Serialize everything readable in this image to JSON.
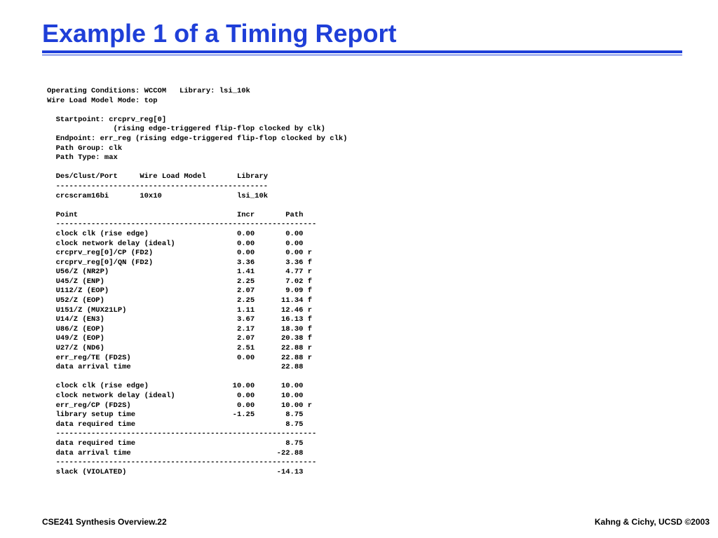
{
  "slide": {
    "title": "Example 1 of a Timing Report",
    "accent_color": "#1f3fd8"
  },
  "report": {
    "lines": [
      "Operating Conditions: WCCOM   Library: lsi_10k",
      "Wire Load Model Mode: top",
      "",
      "  Startpoint: crcprv_reg[0]",
      "               (rising edge-triggered flip-flop clocked by clk)",
      "  Endpoint: err_reg (rising edge-triggered flip-flop clocked by clk)",
      "  Path Group: clk",
      "  Path Type: max",
      "",
      "  Des/Clust/Port     Wire Load Model       Library",
      "  ------------------------------------------------",
      "  crcscram16bi       10x10                 lsi_10k",
      "",
      "  Point                                    Incr       Path",
      "  -----------------------------------------------------------",
      "  clock clk (rise edge)                    0.00       0.00",
      "  clock network delay (ideal)              0.00       0.00",
      "  crcprv_reg[0]/CP (FD2)                   0.00       0.00 r",
      "  crcprv_reg[0]/QN (FD2)                   3.36       3.36 f",
      "  U56/Z (NR2P)                             1.41       4.77 r",
      "  U45/Z (ENP)                              2.25       7.02 f",
      "  U112/Z (EOP)                             2.07       9.09 f",
      "  U52/Z (EOP)                              2.25      11.34 f",
      "  U151/Z (MUX21LP)                         1.11      12.46 r",
      "  U14/Z (EN3)                              3.67      16.13 f",
      "  U86/Z (EOP)                              2.17      18.30 f",
      "  U49/Z (EOP)                              2.07      20.38 f",
      "  U27/Z (ND6)                              2.51      22.88 r",
      "  err_reg/TE (FD2S)                        0.00      22.88 r",
      "  data arrival time                                  22.88",
      "",
      "  clock clk (rise edge)                   10.00      10.00",
      "  clock network delay (ideal)              0.00      10.00",
      "  err_reg/CP (FD2S)                        0.00      10.00 r",
      "  library setup time                      -1.25       8.75",
      "  data required time                                  8.75",
      "  -----------------------------------------------------------",
      "  data required time                                  8.75",
      "  data arrival time                                 -22.88",
      "  -----------------------------------------------------------",
      "  slack (VIOLATED)                                  -14.13"
    ]
  },
  "footer": {
    "left": "CSE241 Synthesis Overview.22",
    "right": "Kahng & Cichy, UCSD ©2003"
  }
}
